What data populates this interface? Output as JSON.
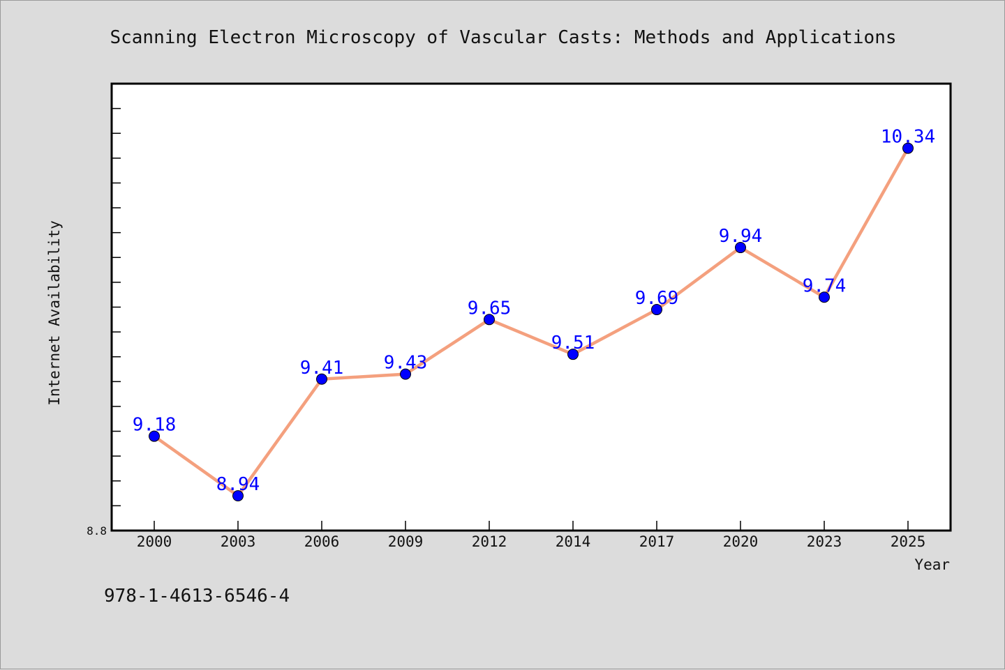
{
  "chart_data": {
    "type": "line",
    "title": "Scanning Electron Microscopy of Vascular Casts: Methods and Applications",
    "xlabel": "Year",
    "ylabel": "Internet Availability",
    "categories": [
      "2000",
      "2003",
      "2006",
      "2009",
      "2012",
      "2014",
      "2017",
      "2020",
      "2023",
      "2025"
    ],
    "values": [
      9.18,
      8.94,
      9.41,
      9.43,
      9.65,
      9.51,
      9.69,
      9.94,
      9.74,
      10.34
    ],
    "data_labels": [
      "9.18",
      "8.94",
      "9.41",
      "9.43",
      "9.65",
      "9.51",
      "9.69",
      "9.94",
      "9.74",
      "10.34"
    ],
    "ylim": [
      8.8,
      10.6
    ],
    "y_tick_labels": [
      "8.8"
    ],
    "y_minor_ticks": [
      8.8,
      8.9,
      9.0,
      9.1,
      9.2,
      9.3,
      9.4,
      9.5,
      9.6,
      9.7,
      9.8,
      9.9,
      10.0,
      10.1,
      10.2,
      10.3,
      10.4,
      10.5
    ],
    "grid": false,
    "line_color": "#f4a07e",
    "marker_color": "#0000ff",
    "label_color": "#0000ff"
  },
  "footnote": "978-1-4613-6546-4"
}
